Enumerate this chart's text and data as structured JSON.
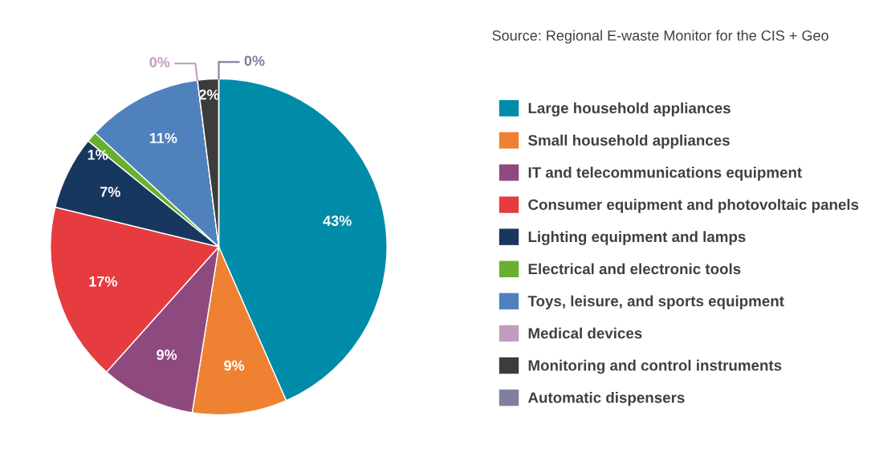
{
  "chart_data": {
    "type": "pie",
    "categories": [
      "Large household appliances",
      "Small household appliances",
      "IT and telecommunications equipment",
      "Consumer equipment and photovoltaic panels",
      "Lighting equipment and lamps",
      "Electrical and electronic tools",
      "Toys, leisure, and sports equipment",
      "Medical devices",
      "Monitoring and control instruments",
      "Automatic dispensers"
    ],
    "values": [
      43,
      9,
      9,
      17,
      7,
      1,
      11,
      0,
      2,
      0
    ],
    "colors": [
      "#008ba8",
      "#ee8232",
      "#8e4a7e",
      "#e63b3f",
      "#17375e",
      "#6aaf2e",
      "#4f81bd",
      "#c39bc0",
      "#3c3c3c",
      "#7f7f9f"
    ],
    "value_labels": [
      "43%",
      "9%",
      "9%",
      "17%",
      "7%",
      "1%",
      "11%",
      "0%",
      "2%",
      "0%"
    ],
    "legend": "right",
    "annotations": [
      "Source: Regional E-waste Monitor for the CIS + Geo"
    ]
  }
}
